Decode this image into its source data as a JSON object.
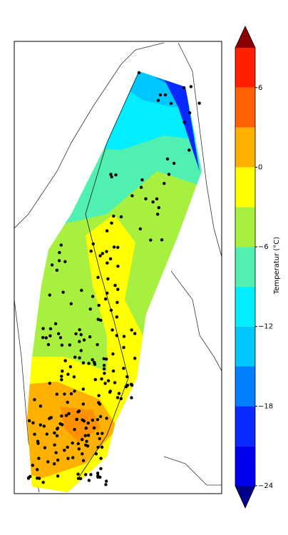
{
  "colorbar": {
    "label": "Temperatur (°C)",
    "levels": [
      -24,
      -21,
      -18,
      -15,
      -12,
      -9,
      -6,
      -3,
      0,
      3,
      6,
      9
    ],
    "colors": [
      "#0000ee",
      "#0a2aff",
      "#0080ff",
      "#00c8ff",
      "#00eeff",
      "#50f0b0",
      "#a8f040",
      "#ffff00",
      "#ffb000",
      "#ff6000",
      "#ff2000"
    ],
    "extend_colors": {
      "min": "#00008b",
      "max": "#8b0000"
    },
    "ticks": [
      {
        "value": -24,
        "label": "−24"
      },
      {
        "value": -18,
        "label": "−18"
      },
      {
        "value": -12,
        "label": "−12"
      },
      {
        "value": -6,
        "label": "−6"
      },
      0,
      6
    ]
  }
}
